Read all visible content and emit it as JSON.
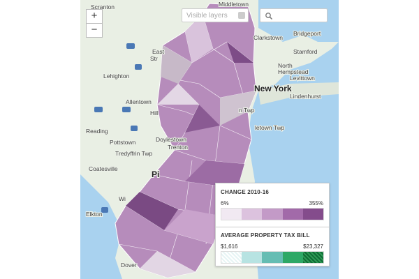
{
  "controls": {
    "zoom_in": "+",
    "zoom_out": "−",
    "layers_placeholder": "Visible layers",
    "search_placeholder": ""
  },
  "places": [
    "Scranton",
    "Middletown",
    "Clarkstown",
    "Bridgeport",
    "Stamford",
    "East",
    "Str",
    "Lehighton",
    "New York",
    "North",
    "Hempstead",
    "Levittown",
    "Lindenhurst",
    "Allentown",
    "Hill",
    "n Twp",
    "Reading",
    "Pottstown",
    "Doylestown",
    "Trenton",
    "letown Twp",
    "Tredyffrin Twp",
    "Coatesville",
    "Pi",
    "Elkton",
    "Wi",
    "Dover"
  ],
  "legend": {
    "change": {
      "title": "CHANGE 2010-16",
      "min": "6%",
      "max": "355%"
    },
    "tax": {
      "title": "AVERAGE PROPERTY TAX BILL",
      "min": "$1,616",
      "max": "$23,327"
    }
  }
}
